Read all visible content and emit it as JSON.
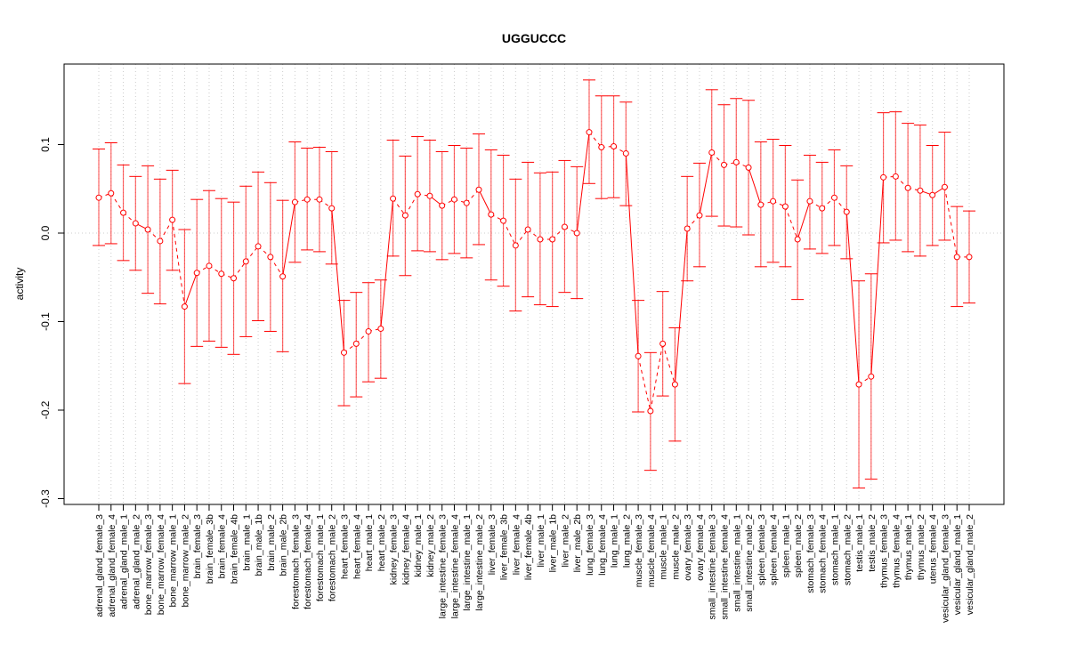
{
  "chart_data": {
    "type": "line",
    "title": "UGGUCCC",
    "xlabel": "",
    "ylabel": "activity",
    "ylim": [
      -0.3,
      0.17
    ],
    "yticks": [
      -0.3,
      -0.2,
      -0.1,
      0.0,
      0.1
    ],
    "ytick_labels": [
      "-0.3",
      "-0.2",
      "-0.1",
      "0.0",
      "0.1"
    ],
    "grid": "vertical dotted per category, dotted horizontal at 0",
    "color": "#ff0000",
    "categories": [
      "adrenal_gland_female_3",
      "adrenal_gland_female_4",
      "adrenal_gland_male_1",
      "adrenal_gland_male_2",
      "bone_marrow_female_3",
      "bone_marrow_female_4",
      "bone_marrow_male_1",
      "bone_marrow_male_2",
      "brain_female_3",
      "brain_female_3b",
      "brain_female_4",
      "brain_female_4b",
      "brain_male_1",
      "brain_male_1b",
      "brain_male_2",
      "brain_male_2b",
      "forestomach_female_3",
      "forestomach_female_4",
      "forestomach_male_1",
      "forestomach_male_2",
      "heart_female_3",
      "heart_female_4",
      "heart_male_1",
      "heart_male_2",
      "kidney_female_3",
      "kidney_female_4",
      "kidney_male_1",
      "kidney_male_2",
      "large_intestine_female_3",
      "large_intestine_female_4",
      "large_intestine_male_1",
      "large_intestine_male_2",
      "liver_female_3",
      "liver_female_3b",
      "liver_female_4",
      "liver_female_4b",
      "liver_male_1",
      "liver_male_1b",
      "liver_male_2",
      "liver_male_2b",
      "lung_female_3",
      "lung_female_4",
      "lung_male_1",
      "lung_male_2",
      "muscle_female_3",
      "muscle_female_4",
      "muscle_male_1",
      "muscle_male_2",
      "ovary_female_3",
      "ovary_female_4",
      "small_intestine_female_3",
      "small_intestine_female_4",
      "small_intestine_male_1",
      "small_intestine_male_2",
      "spleen_female_3",
      "spleen_female_4",
      "spleen_male_1",
      "spleen_male_2",
      "stomach_female_3",
      "stomach_female_4",
      "stomach_male_1",
      "stomach_male_2",
      "testis_male_1",
      "testis_male_2",
      "thymus_female_3",
      "thymus_female_4",
      "thymus_male_1",
      "thymus_male_2",
      "uterus_female_4",
      "vesicular_gland_female_3",
      "vesicular_gland_male_1",
      "vesicular_gland_male_2"
    ],
    "values": [
      0.04,
      0.045,
      0.023,
      0.011,
      0.004,
      -0.009,
      0.015,
      -0.083,
      -0.045,
      -0.037,
      -0.046,
      -0.051,
      -0.032,
      -0.015,
      -0.027,
      -0.049,
      0.035,
      0.038,
      0.038,
      0.028,
      -0.135,
      -0.125,
      -0.111,
      -0.108,
      0.039,
      0.02,
      0.044,
      0.042,
      0.031,
      0.038,
      0.034,
      0.049,
      0.021,
      0.014,
      -0.014,
      0.004,
      -0.007,
      -0.007,
      0.007,
      0.0,
      0.114,
      0.097,
      0.098,
      0.09,
      -0.139,
      -0.201,
      -0.125,
      -0.171,
      0.005,
      0.02,
      0.091,
      0.077,
      0.08,
      0.074,
      0.032,
      0.036,
      0.03,
      -0.007,
      0.036,
      0.028,
      0.04,
      0.024,
      -0.171,
      -0.162,
      0.063,
      0.064,
      0.051,
      0.048,
      0.043,
      0.052,
      -0.027,
      -0.027
    ],
    "upper": [
      0.095,
      0.102,
      0.077,
      0.064,
      0.076,
      0.061,
      0.071,
      0.004,
      0.038,
      0.048,
      0.039,
      0.035,
      0.053,
      0.069,
      0.057,
      0.037,
      0.103,
      0.096,
      0.097,
      0.092,
      -0.076,
      -0.067,
      -0.056,
      -0.053,
      0.105,
      0.087,
      0.109,
      0.105,
      0.092,
      0.099,
      0.096,
      0.112,
      0.094,
      0.088,
      0.061,
      0.08,
      0.068,
      0.069,
      0.082,
      0.075,
      0.173,
      0.155,
      0.155,
      0.148,
      -0.076,
      -0.135,
      -0.066,
      -0.107,
      0.064,
      0.079,
      0.162,
      0.145,
      0.152,
      0.15,
      0.103,
      0.106,
      0.099,
      0.06,
      0.088,
      0.08,
      0.094,
      0.076,
      -0.054,
      -0.046,
      0.136,
      0.137,
      0.124,
      0.122,
      0.099,
      0.114,
      0.03,
      0.025
    ],
    "lower": [
      -0.014,
      -0.012,
      -0.031,
      -0.042,
      -0.068,
      -0.08,
      -0.042,
      -0.17,
      -0.128,
      -0.122,
      -0.129,
      -0.137,
      -0.117,
      -0.099,
      -0.111,
      -0.134,
      -0.033,
      -0.019,
      -0.021,
      -0.035,
      -0.195,
      -0.185,
      -0.168,
      -0.164,
      -0.026,
      -0.048,
      -0.02,
      -0.021,
      -0.03,
      -0.023,
      -0.028,
      -0.013,
      -0.053,
      -0.06,
      -0.088,
      -0.072,
      -0.081,
      -0.083,
      -0.067,
      -0.074,
      0.056,
      0.039,
      0.04,
      0.031,
      -0.202,
      -0.268,
      -0.184,
      -0.235,
      -0.054,
      -0.038,
      0.019,
      0.008,
      0.007,
      -0.002,
      -0.038,
      -0.033,
      -0.038,
      -0.075,
      -0.018,
      -0.023,
      -0.014,
      -0.029,
      -0.288,
      -0.278,
      -0.011,
      -0.008,
      -0.021,
      -0.026,
      -0.014,
      -0.008,
      -0.083,
      -0.079
    ]
  }
}
